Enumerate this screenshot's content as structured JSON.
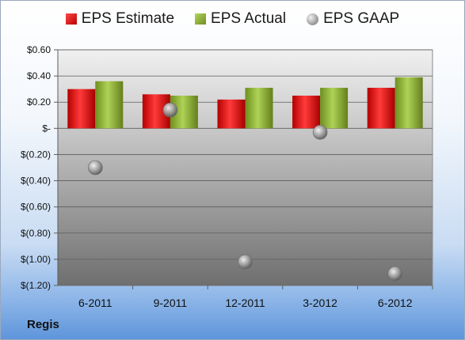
{
  "company": "Regis",
  "colors": {
    "estimate": "#d42020",
    "actual": "#8cb43a",
    "gaap": "#9a9a9a"
  },
  "chart_data": {
    "type": "bar",
    "categories": [
      "6-2011",
      "9-2011",
      "12-2011",
      "3-2012",
      "6-2012"
    ],
    "series": [
      {
        "name": "EPS Estimate",
        "kind": "bar",
        "values": [
          0.3,
          0.26,
          0.22,
          0.25,
          0.31
        ]
      },
      {
        "name": "EPS Actual",
        "kind": "bar",
        "values": [
          0.36,
          0.25,
          0.31,
          0.31,
          0.39
        ]
      },
      {
        "name": "EPS GAAP",
        "kind": "scatter",
        "values": [
          -0.3,
          0.14,
          -1.02,
          -0.03,
          -1.11
        ]
      }
    ],
    "ylim": [
      -1.2,
      0.6
    ],
    "yticks": [
      0.6,
      0.4,
      0.2,
      0,
      -0.2,
      -0.4,
      -0.6,
      -0.8,
      -1.0,
      -1.2
    ],
    "ytick_labels": [
      "$0.60",
      "$0.40",
      "$0.20",
      "$-",
      "$(0.20)",
      "$(0.40)",
      "$(0.60)",
      "$(0.80)",
      "$(1.00)",
      "$(1.20)"
    ],
    "legend": "top",
    "grid": true
  }
}
